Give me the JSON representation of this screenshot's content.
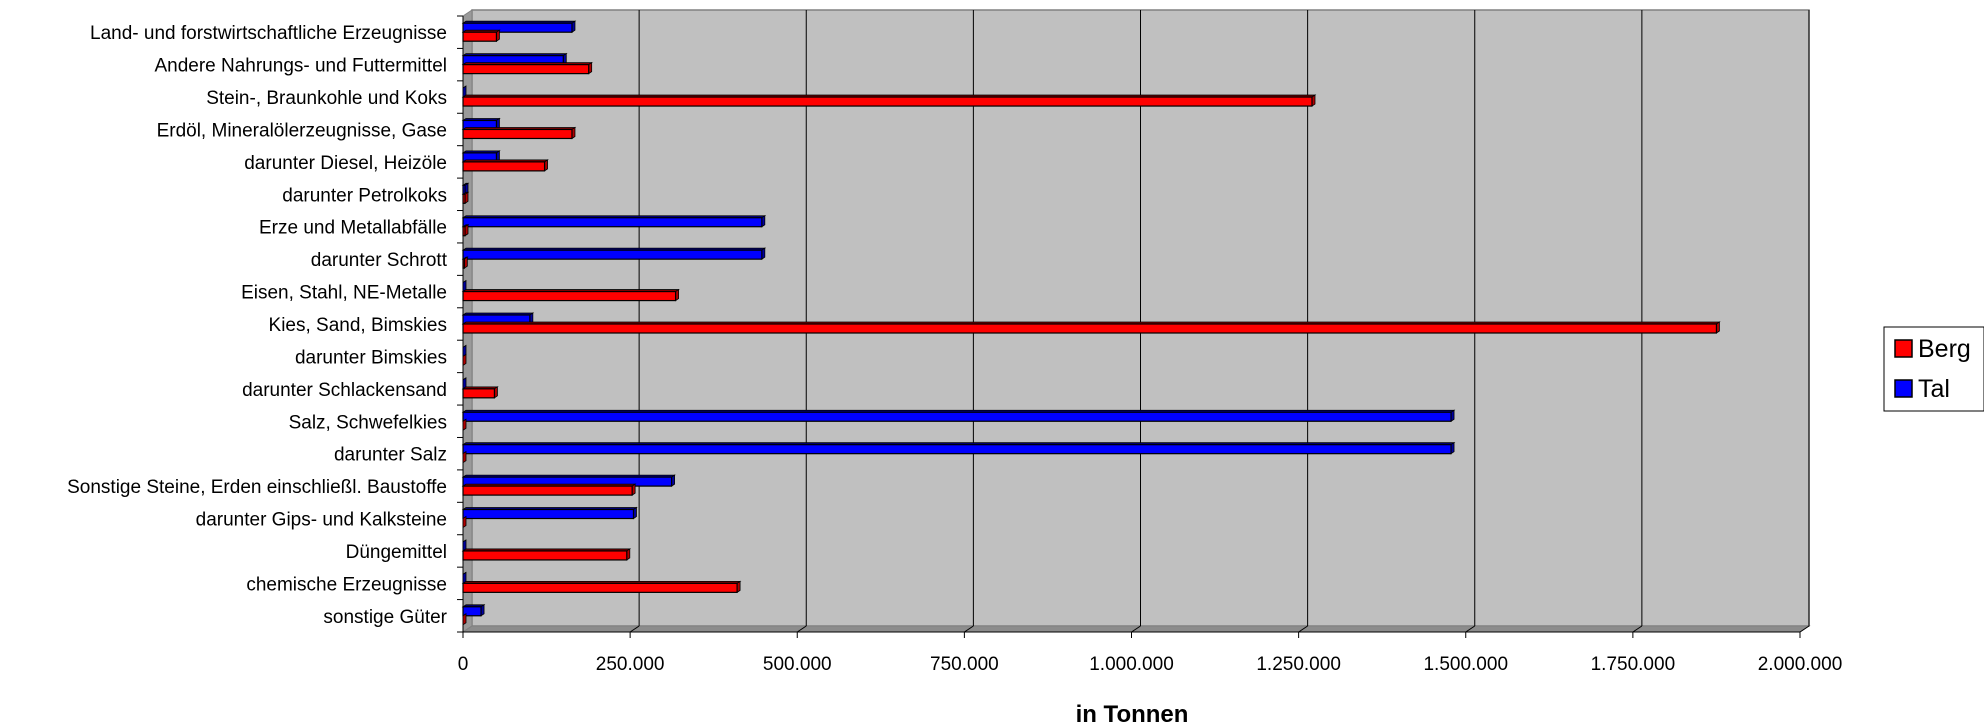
{
  "chart_data": {
    "type": "bar",
    "orientation": "horizontal",
    "categories": [
      "Land- und forstwirtschaftliche Erzeugnisse",
      "Andere Nahrungs- und Futtermittel",
      "Stein-, Braunkohle und Koks",
      "Erdöl, Mineralölerzeugnisse, Gase",
      "darunter Diesel, Heizöle",
      "darunter Petrolkoks",
      "Erze und Metallabfälle",
      "darunter Schrott",
      "Eisen, Stahl, NE-Metalle",
      "Kies, Sand, Bimskies",
      "darunter Bimskies",
      "darunter Schlackensand",
      "Salz, Schwefelkies",
      "darunter Salz",
      "Sonstige Steine, Erden einschließl. Baustoffe",
      "darunter Gips- und Kalksteine",
      "Düngemittel",
      "chemische Erzeugnisse",
      "sonstige Güter"
    ],
    "series": [
      {
        "name": "Berg",
        "color": "#ff0000",
        "values": [
          50000,
          188000,
          1270000,
          163000,
          122000,
          3000,
          3000,
          2000,
          318000,
          1875000,
          0,
          47000,
          0,
          0,
          253000,
          0,
          245000,
          410000,
          0
        ]
      },
      {
        "name": "Tal",
        "color": "#0000ff",
        "values": [
          163000,
          150000,
          0,
          50000,
          50000,
          3000,
          447000,
          447000,
          0,
          100000,
          0,
          0,
          1478000,
          1478000,
          312000,
          255000,
          0,
          0,
          27000
        ]
      }
    ],
    "xlabel": "in Tonnen",
    "ylabel": "",
    "xlim": [
      0,
      2000000
    ],
    "ticks": [
      0,
      250000,
      500000,
      750000,
      1000000,
      1250000,
      1500000,
      1750000,
      2000000
    ],
    "tick_labels": [
      "0",
      "250.000",
      "500.000",
      "750.000",
      "1.000.000",
      "1.250.000",
      "1.500.000",
      "1.750.000",
      "2.000.000"
    ],
    "grid": true,
    "plot_background": "#c0c0c0",
    "legend_position": "right"
  }
}
